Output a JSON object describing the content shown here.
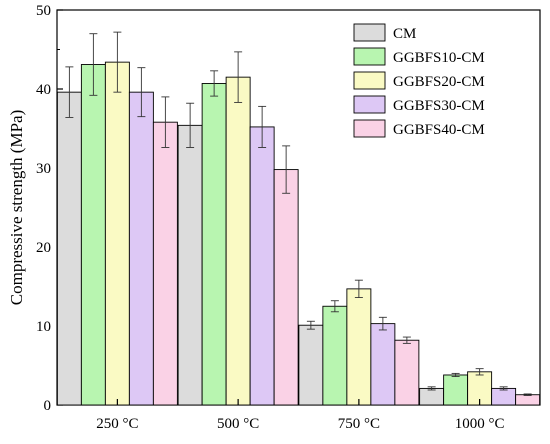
{
  "chart_data": {
    "type": "bar",
    "title": "",
    "xlabel": "",
    "ylabel": "Compressive strength (MPa)",
    "categories": [
      "250 °C",
      "500 °C",
      "750 °C",
      "1000 °C"
    ],
    "ylim": [
      0,
      50
    ],
    "yticks": [
      "0",
      "10",
      "20",
      "30",
      "40",
      "50"
    ],
    "grid": false,
    "legend_position": "top-right",
    "error_bars": true,
    "series": [
      {
        "name": "CM",
        "color": "#dcdcdc",
        "values": [
          39.6,
          35.4,
          10.1,
          2.1
        ],
        "errors": [
          3.2,
          2.8,
          0.5,
          0.2
        ]
      },
      {
        "name": "GGBFS10-CM",
        "color": "#b8f5b0",
        "values": [
          43.1,
          40.7,
          12.5,
          3.8
        ],
        "errors": [
          3.9,
          1.6,
          0.7,
          0.2
        ]
      },
      {
        "name": "GGBFS20-CM",
        "color": "#fafac4",
        "values": [
          43.4,
          41.5,
          14.7,
          4.2
        ],
        "errors": [
          3.8,
          3.2,
          1.1,
          0.4
        ]
      },
      {
        "name": "GGBFS30-CM",
        "color": "#ddc8f5",
        "values": [
          39.6,
          35.2,
          10.3,
          2.1
        ],
        "errors": [
          3.1,
          2.6,
          0.8,
          0.2
        ]
      },
      {
        "name": "GGBFS40-CM",
        "color": "#fad2e6",
        "values": [
          35.8,
          29.8,
          8.2,
          1.3
        ],
        "errors": [
          3.2,
          3.0,
          0.4,
          0.1
        ]
      }
    ]
  }
}
